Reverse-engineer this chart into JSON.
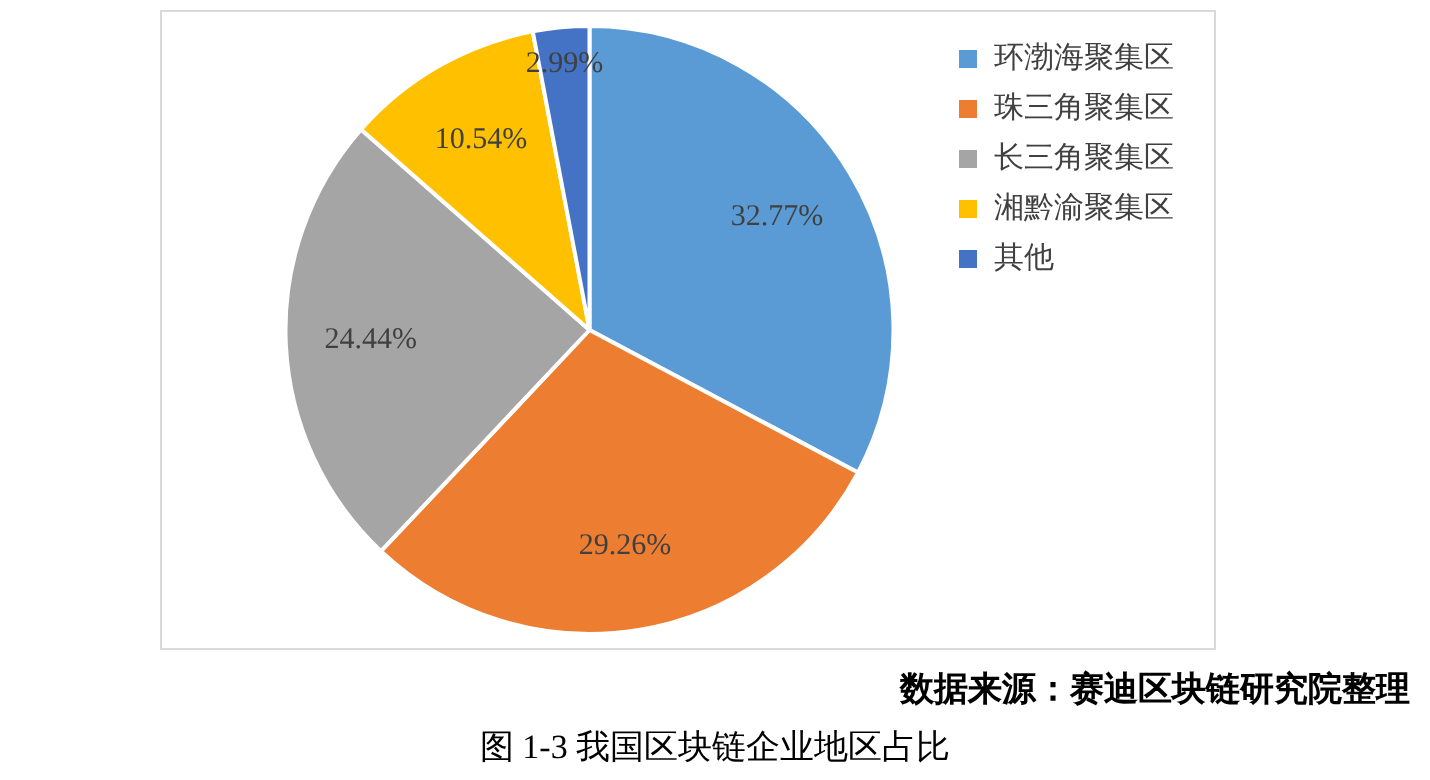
{
  "chart_data": {
    "type": "pie",
    "title": "图 1-3   我国区块链企业地区占比",
    "categories": [
      "环渤海聚集区",
      "珠三角聚集区",
      "长三角聚集区",
      "湘黔渝聚集区",
      "其他"
    ],
    "values": [
      32.77,
      29.26,
      24.44,
      10.54,
      2.99
    ],
    "value_labels": [
      "32.77%",
      "29.26%",
      "24.44%",
      "10.54%",
      "2.99%"
    ],
    "colors": [
      "#5b9bd5",
      "#ed7d31",
      "#a5a5a5",
      "#ffc000",
      "#4472c4"
    ],
    "legend": "right",
    "annotations": [
      "数据来源：赛迪区块链研究院整理"
    ]
  }
}
